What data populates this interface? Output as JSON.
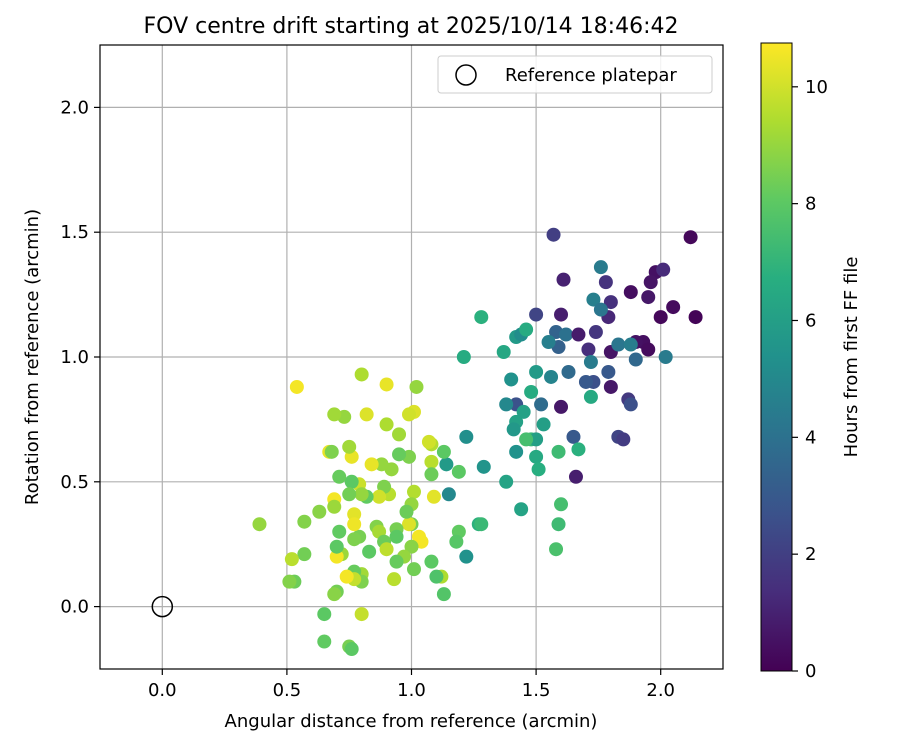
{
  "chart_data": {
    "type": "scatter",
    "title": "FOV centre drift starting at 2025/10/14 18:46:42",
    "xlabel": "Angular distance from reference (arcmin)",
    "ylabel": "Rotation from reference (arcmin)",
    "xlim": [
      -0.25,
      2.25
    ],
    "ylim": [
      -0.25,
      2.25
    ],
    "xticks": [
      "0.0",
      "0.5",
      "1.0",
      "1.5",
      "2.0"
    ],
    "yticks": [
      "0.0",
      "0.5",
      "1.0",
      "1.5",
      "2.0"
    ],
    "grid": true,
    "legend": {
      "position": "top-right",
      "entries": [
        "Reference platepar"
      ]
    },
    "reference_point": {
      "x": 0.0,
      "y": 0.0,
      "label": "Reference platepar"
    },
    "colorbar": {
      "label": "Hours from first FF file",
      "colormap": "viridis",
      "min": 0,
      "max": 10.75,
      "ticks": [
        "0",
        "2",
        "4",
        "6",
        "8",
        "10"
      ]
    },
    "points": [
      {
        "x": 2.12,
        "y": 1.48,
        "c": 0.2
      },
      {
        "x": 2.14,
        "y": 1.16,
        "c": 0.1
      },
      {
        "x": 2.05,
        "y": 1.2,
        "c": 0.3
      },
      {
        "x": 2.0,
        "y": 1.16,
        "c": 0.2
      },
      {
        "x": 1.98,
        "y": 1.34,
        "c": 0.5
      },
      {
        "x": 1.96,
        "y": 1.3,
        "c": 0.6
      },
      {
        "x": 1.95,
        "y": 1.24,
        "c": 0.7
      },
      {
        "x": 2.01,
        "y": 1.35,
        "c": 1.3
      },
      {
        "x": 1.93,
        "y": 1.06,
        "c": 0.4
      },
      {
        "x": 1.9,
        "y": 1.06,
        "c": 0.5
      },
      {
        "x": 1.95,
        "y": 1.03,
        "c": 0.3
      },
      {
        "x": 1.88,
        "y": 1.26,
        "c": 0.4
      },
      {
        "x": 1.8,
        "y": 1.22,
        "c": 1.5
      },
      {
        "x": 1.78,
        "y": 1.3,
        "c": 1.6
      },
      {
        "x": 1.79,
        "y": 1.16,
        "c": 1.2
      },
      {
        "x": 1.76,
        "y": 1.36,
        "c": 4.4
      },
      {
        "x": 1.73,
        "y": 1.23,
        "c": 4.6
      },
      {
        "x": 1.76,
        "y": 1.19,
        "c": 4.2
      },
      {
        "x": 1.74,
        "y": 1.1,
        "c": 1.7
      },
      {
        "x": 1.6,
        "y": 1.17,
        "c": 0.9
      },
      {
        "x": 1.61,
        "y": 1.31,
        "c": 1.0
      },
      {
        "x": 1.57,
        "y": 1.49,
        "c": 2.0
      },
      {
        "x": 1.5,
        "y": 1.17,
        "c": 2.2
      },
      {
        "x": 1.58,
        "y": 1.1,
        "c": 3.4
      },
      {
        "x": 1.62,
        "y": 1.09,
        "c": 4.0
      },
      {
        "x": 1.59,
        "y": 1.04,
        "c": 3.3
      },
      {
        "x": 1.55,
        "y": 1.06,
        "c": 4.6
      },
      {
        "x": 1.67,
        "y": 1.09,
        "c": 0.8
      },
      {
        "x": 1.71,
        "y": 1.03,
        "c": 1.4
      },
      {
        "x": 1.72,
        "y": 0.98,
        "c": 4.4
      },
      {
        "x": 1.79,
        "y": 0.94,
        "c": 3.0
      },
      {
        "x": 1.8,
        "y": 1.02,
        "c": 0.6
      },
      {
        "x": 1.83,
        "y": 1.05,
        "c": 4.2
      },
      {
        "x": 1.88,
        "y": 1.05,
        "c": 4.5
      },
      {
        "x": 1.9,
        "y": 0.99,
        "c": 3.6
      },
      {
        "x": 2.02,
        "y": 1.0,
        "c": 4.4
      },
      {
        "x": 1.8,
        "y": 0.88,
        "c": 0.7
      },
      {
        "x": 1.73,
        "y": 0.9,
        "c": 2.6
      },
      {
        "x": 1.7,
        "y": 0.9,
        "c": 3.0
      },
      {
        "x": 1.63,
        "y": 0.94,
        "c": 3.7
      },
      {
        "x": 1.56,
        "y": 0.92,
        "c": 4.8
      },
      {
        "x": 1.5,
        "y": 0.94,
        "c": 5.8
      },
      {
        "x": 1.48,
        "y": 0.86,
        "c": 6.6
      },
      {
        "x": 1.52,
        "y": 0.81,
        "c": 3.8
      },
      {
        "x": 1.42,
        "y": 0.81,
        "c": 2.7
      },
      {
        "x": 1.38,
        "y": 0.81,
        "c": 5.0
      },
      {
        "x": 1.45,
        "y": 0.78,
        "c": 6.1
      },
      {
        "x": 1.4,
        "y": 0.91,
        "c": 5.4
      },
      {
        "x": 1.37,
        "y": 1.02,
        "c": 6.4
      },
      {
        "x": 1.42,
        "y": 1.08,
        "c": 5.8
      },
      {
        "x": 1.44,
        "y": 1.09,
        "c": 5.2
      },
      {
        "x": 1.46,
        "y": 1.11,
        "c": 6.6
      },
      {
        "x": 1.28,
        "y": 1.16,
        "c": 6.8
      },
      {
        "x": 1.21,
        "y": 1.0,
        "c": 6.6
      },
      {
        "x": 1.6,
        "y": 0.8,
        "c": 0.7
      },
      {
        "x": 1.72,
        "y": 0.84,
        "c": 6.5
      },
      {
        "x": 1.87,
        "y": 0.83,
        "c": 1.8
      },
      {
        "x": 1.88,
        "y": 0.81,
        "c": 2.6
      },
      {
        "x": 1.83,
        "y": 0.68,
        "c": 2.2
      },
      {
        "x": 1.85,
        "y": 0.67,
        "c": 1.9
      },
      {
        "x": 1.65,
        "y": 0.68,
        "c": 3.0
      },
      {
        "x": 1.67,
        "y": 0.63,
        "c": 6.8
      },
      {
        "x": 1.59,
        "y": 0.62,
        "c": 7.3
      },
      {
        "x": 1.66,
        "y": 0.52,
        "c": 0.9
      },
      {
        "x": 1.42,
        "y": 0.74,
        "c": 6.1
      },
      {
        "x": 1.41,
        "y": 0.71,
        "c": 5.7
      },
      {
        "x": 1.42,
        "y": 0.62,
        "c": 5.4
      },
      {
        "x": 1.48,
        "y": 0.67,
        "c": 7.1
      },
      {
        "x": 1.5,
        "y": 0.67,
        "c": 6.0
      },
      {
        "x": 1.5,
        "y": 0.6,
        "c": 6.5
      },
      {
        "x": 1.51,
        "y": 0.55,
        "c": 6.7
      },
      {
        "x": 1.53,
        "y": 0.73,
        "c": 6.0
      },
      {
        "x": 1.46,
        "y": 0.67,
        "c": 7.5
      },
      {
        "x": 1.38,
        "y": 0.5,
        "c": 6.2
      },
      {
        "x": 1.44,
        "y": 0.39,
        "c": 6.2
      },
      {
        "x": 1.29,
        "y": 0.56,
        "c": 5.5
      },
      {
        "x": 1.27,
        "y": 0.33,
        "c": 6.8
      },
      {
        "x": 1.28,
        "y": 0.33,
        "c": 7.2
      },
      {
        "x": 1.22,
        "y": 0.68,
        "c": 5.3
      },
      {
        "x": 1.22,
        "y": 0.2,
        "c": 5.4
      },
      {
        "x": 1.14,
        "y": 0.57,
        "c": 5.8
      },
      {
        "x": 1.15,
        "y": 0.45,
        "c": 5.0
      },
      {
        "x": 1.6,
        "y": 0.41,
        "c": 7.5
      },
      {
        "x": 1.59,
        "y": 0.33,
        "c": 7.3
      },
      {
        "x": 1.58,
        "y": 0.23,
        "c": 7.6
      },
      {
        "x": 1.19,
        "y": 0.54,
        "c": 8.0
      },
      {
        "x": 1.19,
        "y": 0.3,
        "c": 8.1
      },
      {
        "x": 1.18,
        "y": 0.26,
        "c": 7.9
      },
      {
        "x": 1.13,
        "y": 0.62,
        "c": 8.0
      },
      {
        "x": 1.13,
        "y": 0.05,
        "c": 7.8
      },
      {
        "x": 1.12,
        "y": 0.12,
        "c": 9.4
      },
      {
        "x": 1.1,
        "y": 0.12,
        "c": 7.7
      },
      {
        "x": 1.08,
        "y": 0.65,
        "c": 9.5
      },
      {
        "x": 1.07,
        "y": 0.66,
        "c": 10.0
      },
      {
        "x": 1.08,
        "y": 0.58,
        "c": 9.6
      },
      {
        "x": 1.08,
        "y": 0.53,
        "c": 8.3
      },
      {
        "x": 1.09,
        "y": 0.44,
        "c": 10.3
      },
      {
        "x": 1.08,
        "y": 0.18,
        "c": 8.0
      },
      {
        "x": 1.04,
        "y": 0.26,
        "c": 10.6
      },
      {
        "x": 1.03,
        "y": 0.28,
        "c": 10.6
      },
      {
        "x": 1.02,
        "y": 0.88,
        "c": 9.0
      },
      {
        "x": 1.01,
        "y": 0.78,
        "c": 10.2
      },
      {
        "x": 0.99,
        "y": 0.77,
        "c": 10.0
      },
      {
        "x": 0.99,
        "y": 0.6,
        "c": 8.6
      },
      {
        "x": 1.01,
        "y": 0.46,
        "c": 9.5
      },
      {
        "x": 1.0,
        "y": 0.41,
        "c": 9.0
      },
      {
        "x": 1.0,
        "y": 0.33,
        "c": 8.5
      },
      {
        "x": 0.99,
        "y": 0.33,
        "c": 10.2
      },
      {
        "x": 0.98,
        "y": 0.38,
        "c": 8.3
      },
      {
        "x": 1.0,
        "y": 0.24,
        "c": 8.8
      },
      {
        "x": 1.01,
        "y": 0.15,
        "c": 8.4
      },
      {
        "x": 0.97,
        "y": 0.2,
        "c": 9.0
      },
      {
        "x": 0.95,
        "y": 0.69,
        "c": 9.2
      },
      {
        "x": 0.95,
        "y": 0.61,
        "c": 8.2
      },
      {
        "x": 0.92,
        "y": 0.55,
        "c": 9.0
      },
      {
        "x": 0.91,
        "y": 0.45,
        "c": 9.6
      },
      {
        "x": 0.94,
        "y": 0.31,
        "c": 8.5
      },
      {
        "x": 0.94,
        "y": 0.28,
        "c": 8.0
      },
      {
        "x": 0.94,
        "y": 0.18,
        "c": 8.2
      },
      {
        "x": 0.93,
        "y": 0.11,
        "c": 9.6
      },
      {
        "x": 0.9,
        "y": 0.89,
        "c": 10.4
      },
      {
        "x": 0.9,
        "y": 0.73,
        "c": 9.4
      },
      {
        "x": 0.88,
        "y": 0.57,
        "c": 9.0
      },
      {
        "x": 0.89,
        "y": 0.48,
        "c": 8.6
      },
      {
        "x": 0.87,
        "y": 0.44,
        "c": 10.0
      },
      {
        "x": 0.86,
        "y": 0.32,
        "c": 8.7
      },
      {
        "x": 0.87,
        "y": 0.3,
        "c": 9.3
      },
      {
        "x": 0.89,
        "y": 0.26,
        "c": 8.3
      },
      {
        "x": 0.9,
        "y": 0.23,
        "c": 9.7
      },
      {
        "x": 0.84,
        "y": 0.57,
        "c": 10.4
      },
      {
        "x": 0.82,
        "y": 0.77,
        "c": 10.2
      },
      {
        "x": 0.82,
        "y": 0.44,
        "c": 8.1
      },
      {
        "x": 0.83,
        "y": 0.22,
        "c": 8.0
      },
      {
        "x": 0.8,
        "y": 0.93,
        "c": 9.4
      },
      {
        "x": 0.79,
        "y": 0.49,
        "c": 9.9
      },
      {
        "x": 0.8,
        "y": 0.45,
        "c": 9.0
      },
      {
        "x": 0.79,
        "y": 0.28,
        "c": 8.5
      },
      {
        "x": 0.8,
        "y": 0.13,
        "c": 9.2
      },
      {
        "x": 0.8,
        "y": 0.1,
        "c": 8.6
      },
      {
        "x": 0.8,
        "y": -0.03,
        "c": 9.8
      },
      {
        "x": 0.77,
        "y": 0.37,
        "c": 10.3
      },
      {
        "x": 0.77,
        "y": 0.33,
        "c": 10.5
      },
      {
        "x": 0.77,
        "y": 0.27,
        "c": 8.6
      },
      {
        "x": 0.77,
        "y": 0.14,
        "c": 8.2
      },
      {
        "x": 0.77,
        "y": 0.11,
        "c": 9.8
      },
      {
        "x": 0.76,
        "y": 0.6,
        "c": 10.4
      },
      {
        "x": 0.76,
        "y": 0.5,
        "c": 8.0
      },
      {
        "x": 0.75,
        "y": 0.64,
        "c": 9.2
      },
      {
        "x": 0.75,
        "y": 0.45,
        "c": 8.4
      },
      {
        "x": 0.74,
        "y": 0.12,
        "c": 10.6
      },
      {
        "x": 0.75,
        "y": -0.16,
        "c": 8.5
      },
      {
        "x": 0.76,
        "y": -0.17,
        "c": 8.0
      },
      {
        "x": 0.73,
        "y": 0.76,
        "c": 9.0
      },
      {
        "x": 0.71,
        "y": 0.52,
        "c": 8.2
      },
      {
        "x": 0.71,
        "y": 0.3,
        "c": 8.1
      },
      {
        "x": 0.72,
        "y": 0.21,
        "c": 9.1
      },
      {
        "x": 0.7,
        "y": 0.2,
        "c": 10.6
      },
      {
        "x": 0.69,
        "y": 0.77,
        "c": 9.2
      },
      {
        "x": 0.67,
        "y": 0.62,
        "c": 10.4
      },
      {
        "x": 0.68,
        "y": 0.62,
        "c": 8.6
      },
      {
        "x": 0.69,
        "y": 0.43,
        "c": 10.6
      },
      {
        "x": 0.69,
        "y": 0.4,
        "c": 9.1
      },
      {
        "x": 0.7,
        "y": 0.24,
        "c": 8.0
      },
      {
        "x": 0.7,
        "y": 0.06,
        "c": 8.4
      },
      {
        "x": 0.69,
        "y": 0.05,
        "c": 8.8
      },
      {
        "x": 0.65,
        "y": -0.03,
        "c": 8.0
      },
      {
        "x": 0.65,
        "y": -0.14,
        "c": 8.1
      },
      {
        "x": 0.63,
        "y": 0.38,
        "c": 8.8
      },
      {
        "x": 0.57,
        "y": 0.34,
        "c": 8.7
      },
      {
        "x": 0.57,
        "y": 0.21,
        "c": 8.4
      },
      {
        "x": 0.54,
        "y": 0.88,
        "c": 10.6
      },
      {
        "x": 0.53,
        "y": 0.1,
        "c": 8.3
      },
      {
        "x": 0.51,
        "y": 0.1,
        "c": 8.7
      },
      {
        "x": 0.52,
        "y": 0.19,
        "c": 9.6
      },
      {
        "x": 0.39,
        "y": 0.33,
        "c": 9.0
      }
    ]
  }
}
